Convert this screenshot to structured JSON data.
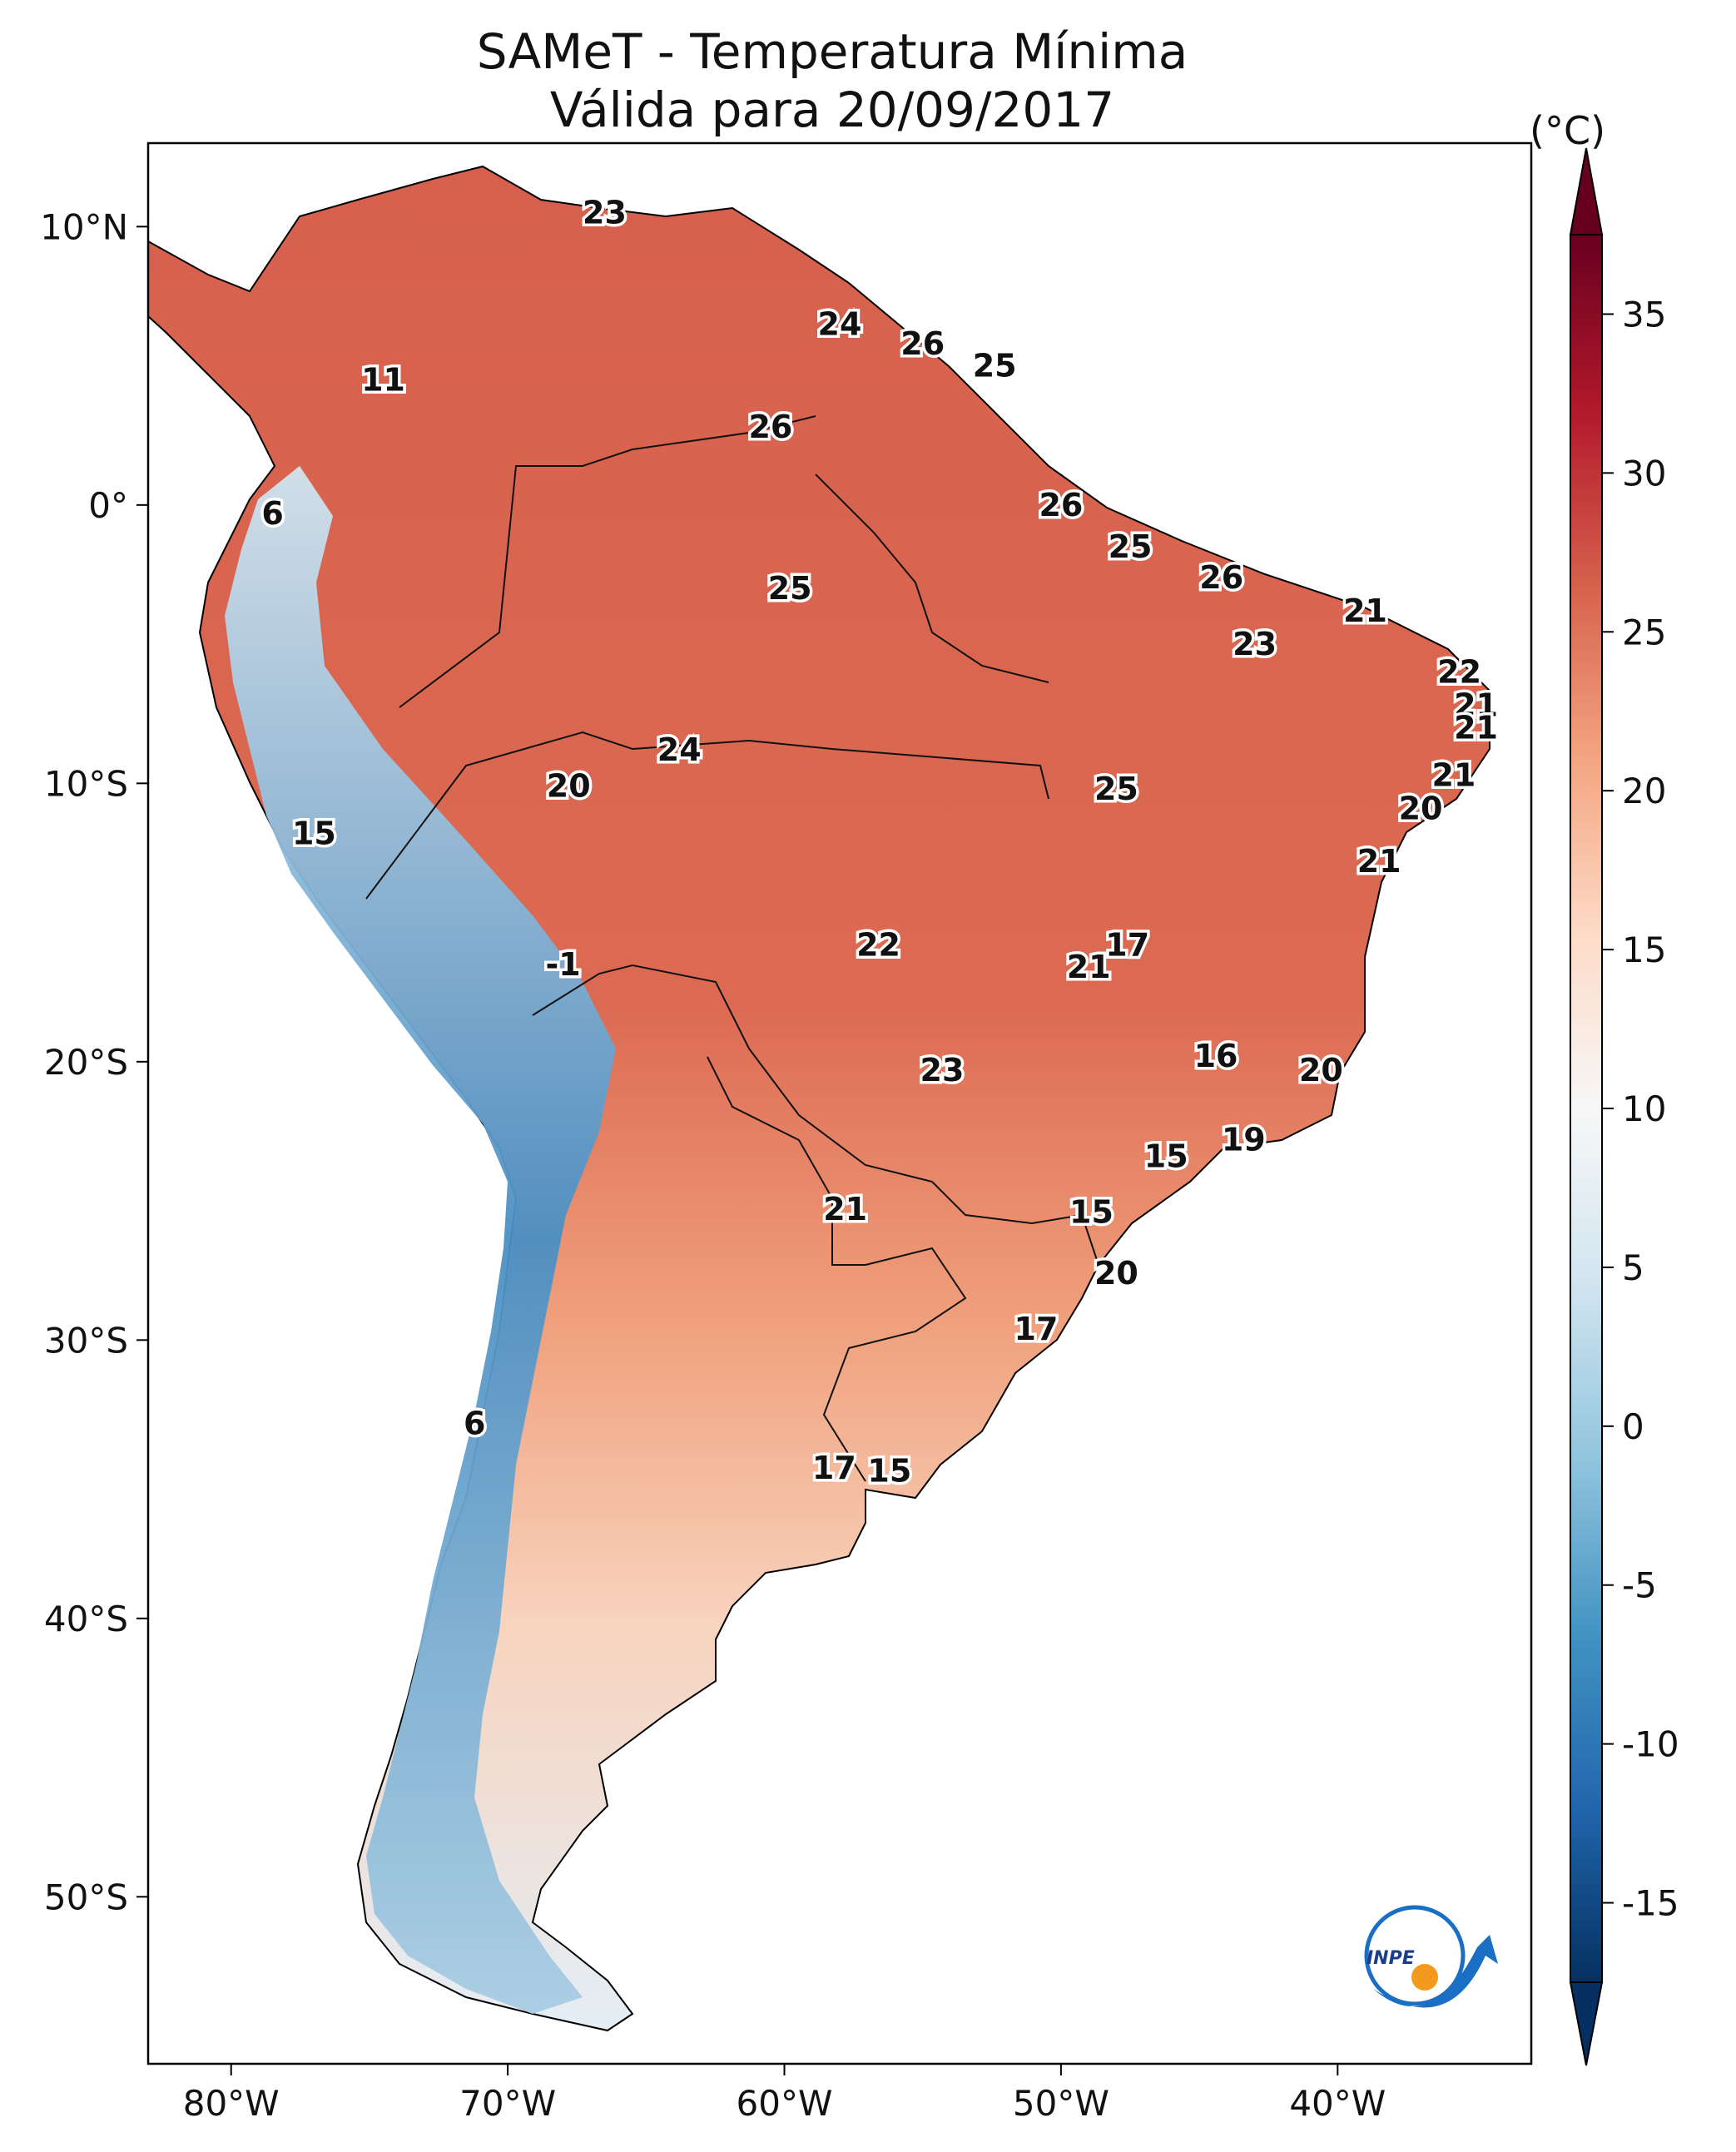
{
  "title": {
    "line1": "SAMeT - Temperatura Mínima",
    "line2": "Válida para 20/09/2017"
  },
  "unit_label": "(°C)",
  "map": {
    "extent": {
      "lon_min": -83,
      "lon_max": -33,
      "lat_min": -56,
      "lat_max": 13
    },
    "lon_ticks": [
      {
        "lon": -80,
        "label": "80°W"
      },
      {
        "lon": -70,
        "label": "70°W"
      },
      {
        "lon": -60,
        "label": "60°W"
      },
      {
        "lon": -50,
        "label": "50°W"
      },
      {
        "lon": -40,
        "label": "40°W"
      }
    ],
    "lat_ticks": [
      {
        "lat": 10,
        "label": "10°N"
      },
      {
        "lat": 0,
        "label": "0°"
      },
      {
        "lat": -10,
        "label": "10°S"
      },
      {
        "lat": -20,
        "label": "20°S"
      },
      {
        "lat": -30,
        "label": "30°S"
      },
      {
        "lat": -40,
        "label": "40°S"
      },
      {
        "lat": -50,
        "label": "50°S"
      }
    ],
    "labels": [
      {
        "lon": -66.5,
        "lat": 10.5,
        "text": "23"
      },
      {
        "lon": -58.0,
        "lat": 6.5,
        "text": "24"
      },
      {
        "lon": -55.0,
        "lat": 5.8,
        "text": "26"
      },
      {
        "lon": -52.4,
        "lat": 5.0,
        "text": "25"
      },
      {
        "lon": -74.5,
        "lat": 4.5,
        "text": "11"
      },
      {
        "lon": -60.5,
        "lat": 2.8,
        "text": "26"
      },
      {
        "lon": -78.5,
        "lat": -0.3,
        "text": "6"
      },
      {
        "lon": -50.0,
        "lat": 0.0,
        "text": "26"
      },
      {
        "lon": -47.5,
        "lat": -1.5,
        "text": "25"
      },
      {
        "lon": -59.8,
        "lat": -3.0,
        "text": "25"
      },
      {
        "lon": -44.2,
        "lat": -2.6,
        "text": "26"
      },
      {
        "lon": -39.0,
        "lat": -3.8,
        "text": "21"
      },
      {
        "lon": -43.0,
        "lat": -5.0,
        "text": "23"
      },
      {
        "lon": -35.6,
        "lat": -6.0,
        "text": "22"
      },
      {
        "lon": -35.0,
        "lat": -7.2,
        "text": "21"
      },
      {
        "lon": -35.0,
        "lat": -8.0,
        "text": "21"
      },
      {
        "lon": -63.8,
        "lat": -8.8,
        "text": "24"
      },
      {
        "lon": -67.8,
        "lat": -10.1,
        "text": "20"
      },
      {
        "lon": -35.8,
        "lat": -9.7,
        "text": "21"
      },
      {
        "lon": -48.0,
        "lat": -10.2,
        "text": "25"
      },
      {
        "lon": -37.0,
        "lat": -10.9,
        "text": "20"
      },
      {
        "lon": -77.0,
        "lat": -11.8,
        "text": "15"
      },
      {
        "lon": -38.5,
        "lat": -12.8,
        "text": "21"
      },
      {
        "lon": -47.6,
        "lat": -15.8,
        "text": "17"
      },
      {
        "lon": -56.6,
        "lat": -15.8,
        "text": "22"
      },
      {
        "lon": -49.0,
        "lat": -16.6,
        "text": "21"
      },
      {
        "lon": -68.0,
        "lat": -16.5,
        "text": "-1"
      },
      {
        "lon": -44.4,
        "lat": -19.8,
        "text": "16"
      },
      {
        "lon": -40.6,
        "lat": -20.3,
        "text": "20"
      },
      {
        "lon": -54.3,
        "lat": -20.3,
        "text": "23"
      },
      {
        "lon": -43.4,
        "lat": -22.8,
        "text": "19"
      },
      {
        "lon": -46.2,
        "lat": -23.4,
        "text": "15"
      },
      {
        "lon": -57.8,
        "lat": -25.3,
        "text": "21"
      },
      {
        "lon": -48.9,
        "lat": -25.4,
        "text": "15"
      },
      {
        "lon": -48.0,
        "lat": -27.6,
        "text": "20"
      },
      {
        "lon": -50.9,
        "lat": -29.6,
        "text": "17"
      },
      {
        "lon": -71.2,
        "lat": -33.0,
        "text": "6"
      },
      {
        "lon": -58.2,
        "lat": -34.6,
        "text": "17"
      },
      {
        "lon": -56.2,
        "lat": -34.7,
        "text": "15"
      }
    ]
  },
  "colorbar": {
    "min": -17.5,
    "max": 37.5,
    "ticks": [
      {
        "value": 35,
        "label": "35"
      },
      {
        "value": 30,
        "label": "30"
      },
      {
        "value": 25,
        "label": "25"
      },
      {
        "value": 20,
        "label": "20"
      },
      {
        "value": 15,
        "label": "15"
      },
      {
        "value": 10,
        "label": "10"
      },
      {
        "value": 5,
        "label": "5"
      },
      {
        "value": 0,
        "label": "0"
      },
      {
        "value": -5,
        "label": "-5"
      },
      {
        "value": -10,
        "label": "-10"
      },
      {
        "value": -15,
        "label": "-15"
      }
    ],
    "colors": [
      "#053061",
      "#2166ac",
      "#4393c3",
      "#92c5de",
      "#d1e5f0",
      "#f7f7f7",
      "#fddbc7",
      "#f4a582",
      "#d6604d",
      "#b2182b",
      "#67001f"
    ]
  },
  "logo": {
    "text": "INPE"
  }
}
